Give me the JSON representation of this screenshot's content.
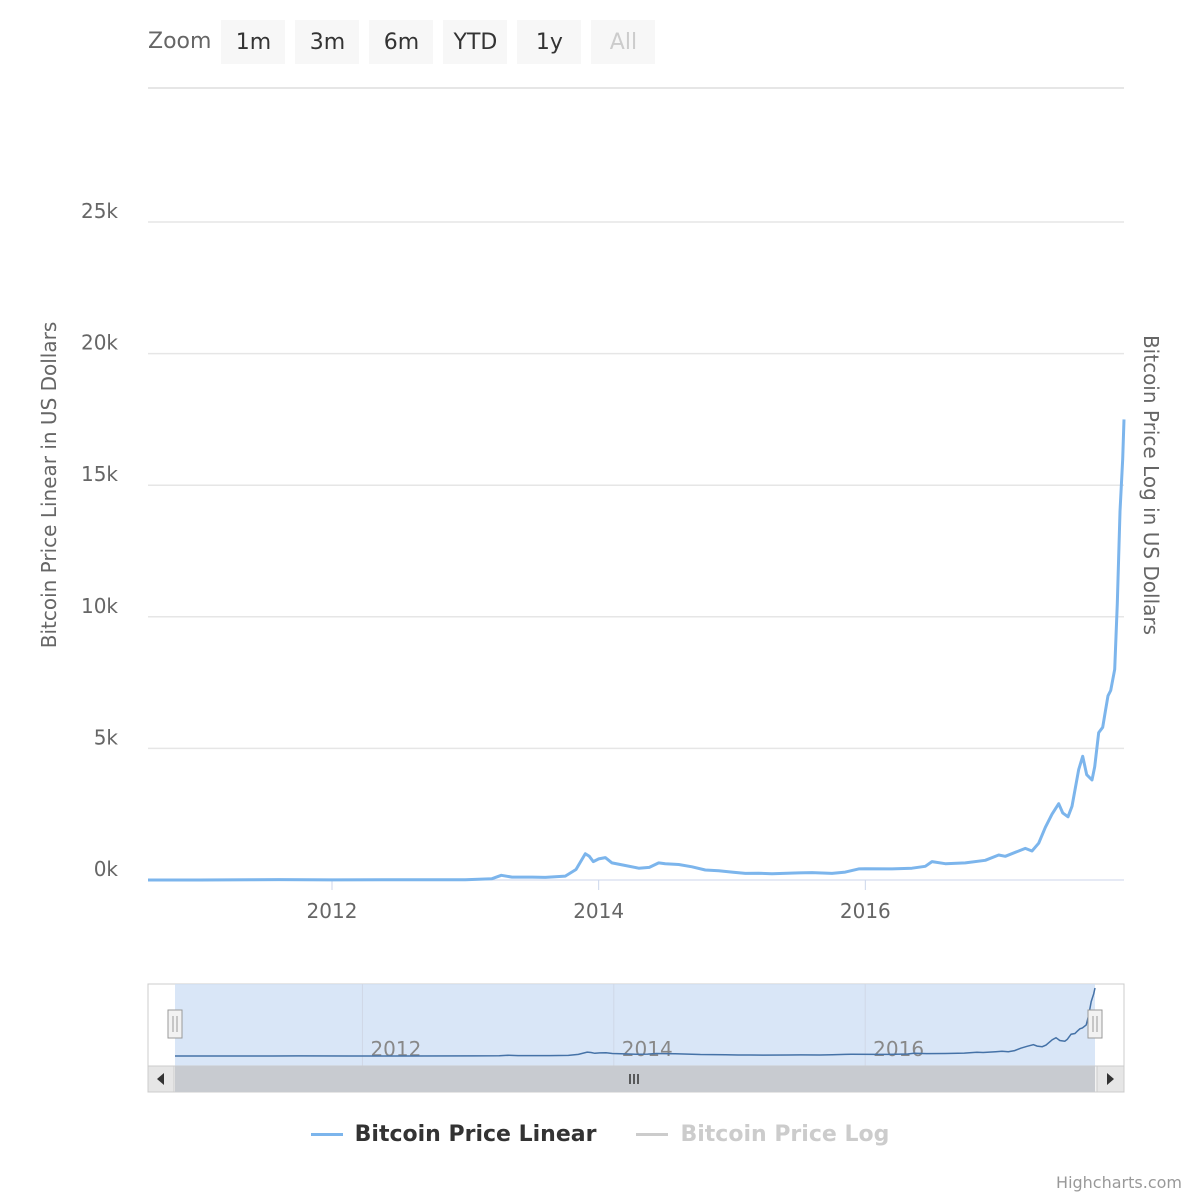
{
  "zoom": {
    "label": "Zoom",
    "buttons": [
      "1m",
      "3m",
      "6m",
      "YTD",
      "1y",
      "All"
    ],
    "disabled_button": "All"
  },
  "colors": {
    "series_linear": "#7cb5ec",
    "series_log_inactive": "#cccccc",
    "grid": "#e6e6e6",
    "navigator_mask": "#cfe0f5",
    "navigator_series": "#4572a7",
    "scrollbar": "#c8cbd0"
  },
  "chart_data": {
    "type": "line",
    "title": "",
    "ylabel_left": "Bitcoin Price Linear in US Dollars",
    "ylabel_right": "Bitcoin Price Log in US Dollars",
    "y_ticks": [
      "0k",
      "5k",
      "10k",
      "15k",
      "20k",
      "25k"
    ],
    "ylim": [
      0,
      25000
    ],
    "xlim": [
      2010.62,
      2017.94
    ],
    "x_ticks": [
      "2012",
      "2014",
      "2016"
    ],
    "navigator_x_ticks": [
      "2012",
      "2014",
      "2016"
    ],
    "legend_position": "bottom",
    "grid": true,
    "series": [
      {
        "name": "Bitcoin Price Linear",
        "visible": true,
        "x": [
          2010.62,
          2011.0,
          2011.4,
          2011.6,
          2012.0,
          2012.5,
          2013.0,
          2013.2,
          2013.27,
          2013.35,
          2013.5,
          2013.6,
          2013.75,
          2013.83,
          2013.9,
          2013.93,
          2013.96,
          2014.0,
          2014.05,
          2014.1,
          2014.2,
          2014.3,
          2014.38,
          2014.45,
          2014.5,
          2014.6,
          2014.7,
          2014.8,
          2014.9,
          2015.0,
          2015.1,
          2015.2,
          2015.3,
          2015.5,
          2015.6,
          2015.75,
          2015.85,
          2015.95,
          2016.0,
          2016.2,
          2016.35,
          2016.45,
          2016.5,
          2016.6,
          2016.75,
          2016.9,
          2017.0,
          2017.05,
          2017.15,
          2017.2,
          2017.25,
          2017.3,
          2017.35,
          2017.4,
          2017.45,
          2017.48,
          2017.52,
          2017.55,
          2017.6,
          2017.63,
          2017.66,
          2017.7,
          2017.72,
          2017.75,
          2017.78,
          2017.8,
          2017.82,
          2017.84,
          2017.87,
          2017.89,
          2017.91,
          2017.93,
          2017.94
        ],
        "values": [
          0.1,
          0.3,
          10,
          15,
          5,
          10,
          13,
          50,
          180,
          110,
          110,
          100,
          150,
          400,
          1000,
          900,
          700,
          800,
          850,
          650,
          550,
          450,
          480,
          650,
          620,
          590,
          500,
          380,
          350,
          300,
          250,
          260,
          240,
          270,
          280,
          250,
          300,
          420,
          430,
          420,
          450,
          520,
          700,
          620,
          650,
          750,
          950,
          900,
          1100,
          1200,
          1100,
          1400,
          2000,
          2500,
          2900,
          2550,
          2400,
          2800,
          4200,
          4700,
          4000,
          3800,
          4300,
          5600,
          5800,
          6400,
          7000,
          7200,
          8000,
          10500,
          14000,
          16000,
          17500
        ]
      },
      {
        "name": "Bitcoin Price Log",
        "visible": false
      }
    ]
  },
  "credits": "Highcharts.com"
}
